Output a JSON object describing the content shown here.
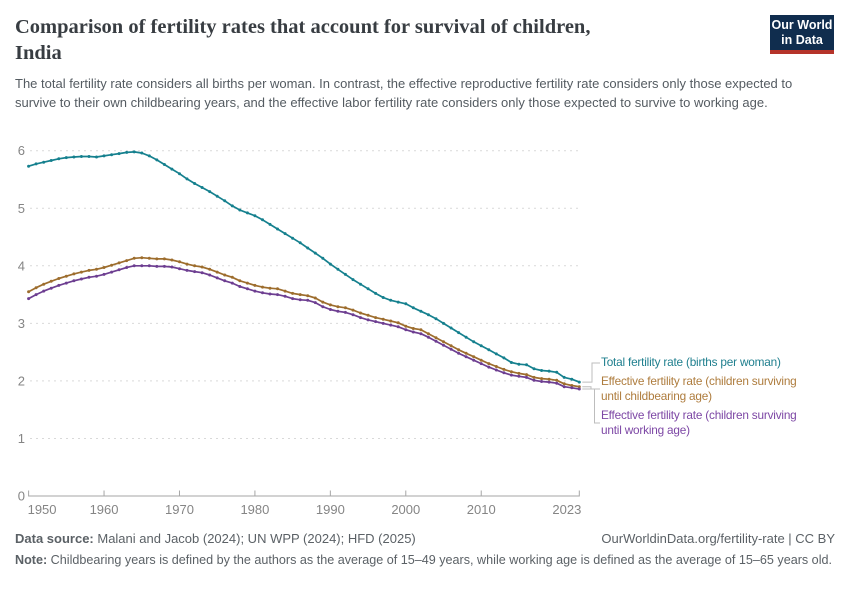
{
  "header": {
    "title_line1": "Comparison of fertility rates that account for survival of children,",
    "title_line2": "India",
    "subtitle": "The total fertility rate considers all births per woman. In contrast, the effective reproductive fertility rate considers only those expected to survive to their own childbearing years, and the effective labor fertility rate considers only those expected to survive to working age.",
    "logo": {
      "line1": "Our World",
      "line2": "in Data",
      "bg_color": "#102d4e",
      "bar_color": "#b5332a"
    }
  },
  "theme": {
    "grid_color": "#d9d9d9",
    "axis_color": "#a6a6a6",
    "tick_label_color": "#858585",
    "connector_color": "#bdbdbd"
  },
  "chart_data": {
    "type": "line",
    "title": "Comparison of fertility rates that account for survival of children, India",
    "xlabel": "",
    "ylabel": "",
    "xlim": [
      1950,
      2023
    ],
    "ylim": [
      0,
      6
    ],
    "grid": "horizontal-dashed",
    "legend_position": "right",
    "markers": true,
    "x_ticks": [
      1950,
      1960,
      1970,
      1980,
      1990,
      2000,
      2010,
      2023
    ],
    "y_ticks": [
      0,
      1,
      2,
      3,
      4,
      5,
      6
    ],
    "x": [
      1950,
      1951,
      1952,
      1953,
      1954,
      1955,
      1956,
      1957,
      1958,
      1959,
      1960,
      1961,
      1962,
      1963,
      1964,
      1965,
      1966,
      1967,
      1968,
      1969,
      1970,
      1971,
      1972,
      1973,
      1974,
      1975,
      1976,
      1977,
      1978,
      1979,
      1980,
      1981,
      1982,
      1983,
      1984,
      1985,
      1986,
      1987,
      1988,
      1989,
      1990,
      1991,
      1992,
      1993,
      1994,
      1995,
      1996,
      1997,
      1998,
      1999,
      2000,
      2001,
      2002,
      2003,
      2004,
      2005,
      2006,
      2007,
      2008,
      2009,
      2010,
      2011,
      2012,
      2013,
      2014,
      2015,
      2016,
      2017,
      2018,
      2019,
      2020,
      2021,
      2022,
      2023
    ],
    "series": [
      {
        "id": "total",
        "name": "Total fertility rate (births per woman)",
        "legend_lines": [
          "Total fertility rate (births per woman)"
        ],
        "color": "#15808e",
        "legend_color": "#1f7f8e",
        "values": [
          5.73,
          5.77,
          5.8,
          5.83,
          5.86,
          5.88,
          5.89,
          5.9,
          5.9,
          5.89,
          5.91,
          5.93,
          5.95,
          5.97,
          5.98,
          5.96,
          5.91,
          5.84,
          5.76,
          5.68,
          5.6,
          5.51,
          5.43,
          5.36,
          5.29,
          5.21,
          5.13,
          5.04,
          4.97,
          4.92,
          4.87,
          4.8,
          4.72,
          4.64,
          4.56,
          4.48,
          4.4,
          4.31,
          4.22,
          4.13,
          4.03,
          3.94,
          3.85,
          3.76,
          3.68,
          3.6,
          3.52,
          3.45,
          3.4,
          3.37,
          3.34,
          3.27,
          3.21,
          3.15,
          3.08,
          3.0,
          2.92,
          2.84,
          2.76,
          2.68,
          2.61,
          2.54,
          2.47,
          2.4,
          2.32,
          2.29,
          2.28,
          2.21,
          2.18,
          2.17,
          2.15,
          2.06,
          2.03,
          1.98
        ]
      },
      {
        "id": "childbearing",
        "name": "Effective fertility rate (children surviving until childbearing age)",
        "legend_lines": [
          "Effective fertility rate (children surviving",
          "until childbearing age)"
        ],
        "color": "#9d6d2d",
        "legend_color": "#ae7c3d",
        "values": [
          3.55,
          3.62,
          3.68,
          3.73,
          3.78,
          3.82,
          3.86,
          3.89,
          3.92,
          3.94,
          3.97,
          4.01,
          4.05,
          4.09,
          4.13,
          4.14,
          4.13,
          4.12,
          4.12,
          4.1,
          4.07,
          4.03,
          4.0,
          3.98,
          3.94,
          3.89,
          3.84,
          3.8,
          3.74,
          3.7,
          3.66,
          3.63,
          3.61,
          3.6,
          3.56,
          3.52,
          3.5,
          3.48,
          3.44,
          3.37,
          3.32,
          3.29,
          3.27,
          3.23,
          3.18,
          3.14,
          3.1,
          3.07,
          3.04,
          3.01,
          2.95,
          2.91,
          2.89,
          2.82,
          2.75,
          2.68,
          2.61,
          2.54,
          2.48,
          2.42,
          2.36,
          2.3,
          2.25,
          2.2,
          2.16,
          2.13,
          2.11,
          2.06,
          2.04,
          2.03,
          2.01,
          1.95,
          1.92,
          1.9
        ]
      },
      {
        "id": "working",
        "name": "Effective fertility rate (children surviving until working age)",
        "legend_lines": [
          "Effective fertility rate (children surviving",
          "until working age)"
        ],
        "color": "#6d3e91",
        "legend_color": "#7d47a5",
        "values": [
          3.43,
          3.5,
          3.56,
          3.61,
          3.66,
          3.7,
          3.74,
          3.77,
          3.8,
          3.82,
          3.85,
          3.89,
          3.93,
          3.97,
          4.0,
          4.0,
          4.0,
          3.99,
          3.99,
          3.98,
          3.95,
          3.92,
          3.9,
          3.88,
          3.84,
          3.79,
          3.74,
          3.7,
          3.64,
          3.6,
          3.56,
          3.53,
          3.51,
          3.5,
          3.47,
          3.43,
          3.41,
          3.4,
          3.36,
          3.29,
          3.24,
          3.21,
          3.19,
          3.15,
          3.1,
          3.06,
          3.03,
          3.0,
          2.97,
          2.94,
          2.89,
          2.85,
          2.82,
          2.76,
          2.69,
          2.62,
          2.55,
          2.48,
          2.42,
          2.36,
          2.3,
          2.24,
          2.19,
          2.14,
          2.1,
          2.08,
          2.06,
          2.01,
          1.99,
          1.98,
          1.96,
          1.9,
          1.88,
          1.86
        ]
      }
    ]
  },
  "footer": {
    "data_source_label": "Data source:",
    "data_source_text": " Malani and Jacob (2024); UN WPP (2024); HFD (2025)",
    "link": "OurWorldinData.org/fertility-rate | CC BY",
    "note_label": "Note:",
    "note_text": " Childbearing years is defined by the authors as the average of 15–49 years, while working age is defined as the average of 15–65 years old."
  }
}
